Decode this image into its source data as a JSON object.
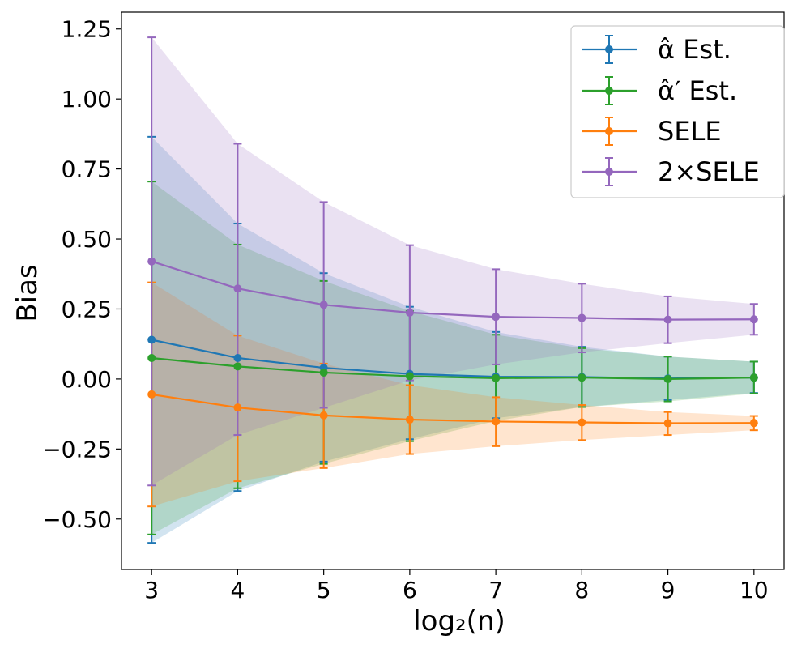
{
  "chart_data": {
    "type": "line",
    "title": "",
    "xlabel": "log₂(n)",
    "ylabel": "Bias",
    "xlim": [
      2.65,
      10.35
    ],
    "ylim": [
      -0.68,
      1.31
    ],
    "x": [
      3,
      4,
      5,
      6,
      7,
      8,
      9,
      10
    ],
    "xticks": [
      3,
      4,
      5,
      6,
      7,
      8,
      9,
      10
    ],
    "xtick_labels": [
      "3",
      "4",
      "5",
      "6",
      "7",
      "8",
      "9",
      "10"
    ],
    "yticks": [
      -0.5,
      -0.25,
      0.0,
      0.25,
      0.5,
      0.75,
      1.0,
      1.25
    ],
    "ytick_labels": [
      "−0.50",
      "−0.25",
      "0.00",
      "0.25",
      "0.50",
      "0.75",
      "1.00",
      "1.25"
    ],
    "grid": false,
    "legend_position": "top-right",
    "series": [
      {
        "name": "α̂ Est.",
        "color": "#1f77b4",
        "values": [
          0.14,
          0.075,
          0.04,
          0.018,
          0.008,
          0.007,
          0.002,
          0.005
        ],
        "lower": [
          -0.585,
          -0.4,
          -0.295,
          -0.215,
          -0.14,
          -0.1,
          -0.075,
          -0.05
        ],
        "upper": [
          0.865,
          0.555,
          0.378,
          0.258,
          0.168,
          0.115,
          0.08,
          0.062
        ]
      },
      {
        "name": "α̂′ Est.",
        "color": "#2ca02c",
        "values": [
          0.075,
          0.045,
          0.023,
          0.01,
          0.003,
          0.005,
          0.0,
          0.005
        ],
        "lower": [
          -0.555,
          -0.39,
          -0.303,
          -0.222,
          -0.15,
          -0.1,
          -0.08,
          -0.052
        ],
        "upper": [
          0.705,
          0.48,
          0.35,
          0.243,
          0.158,
          0.11,
          0.08,
          0.062
        ]
      },
      {
        "name": "SELE",
        "color": "#ff7f0e",
        "values": [
          -0.055,
          -0.102,
          -0.13,
          -0.145,
          -0.152,
          -0.155,
          -0.158,
          -0.157
        ],
        "lower": [
          -0.455,
          -0.365,
          -0.318,
          -0.268,
          -0.24,
          -0.218,
          -0.2,
          -0.183
        ],
        "upper": [
          0.345,
          0.155,
          0.055,
          -0.022,
          -0.065,
          -0.093,
          -0.118,
          -0.132
        ]
      },
      {
        "name": "2×SELE",
        "color": "#9467bd",
        "values": [
          0.42,
          0.323,
          0.265,
          0.237,
          0.222,
          0.218,
          0.212,
          0.213
        ],
        "lower": [
          -0.38,
          -0.2,
          -0.103,
          -0.005,
          0.052,
          0.095,
          0.128,
          0.158
        ],
        "upper": [
          1.22,
          0.84,
          0.632,
          0.478,
          0.392,
          0.34,
          0.295,
          0.268
        ]
      }
    ]
  }
}
